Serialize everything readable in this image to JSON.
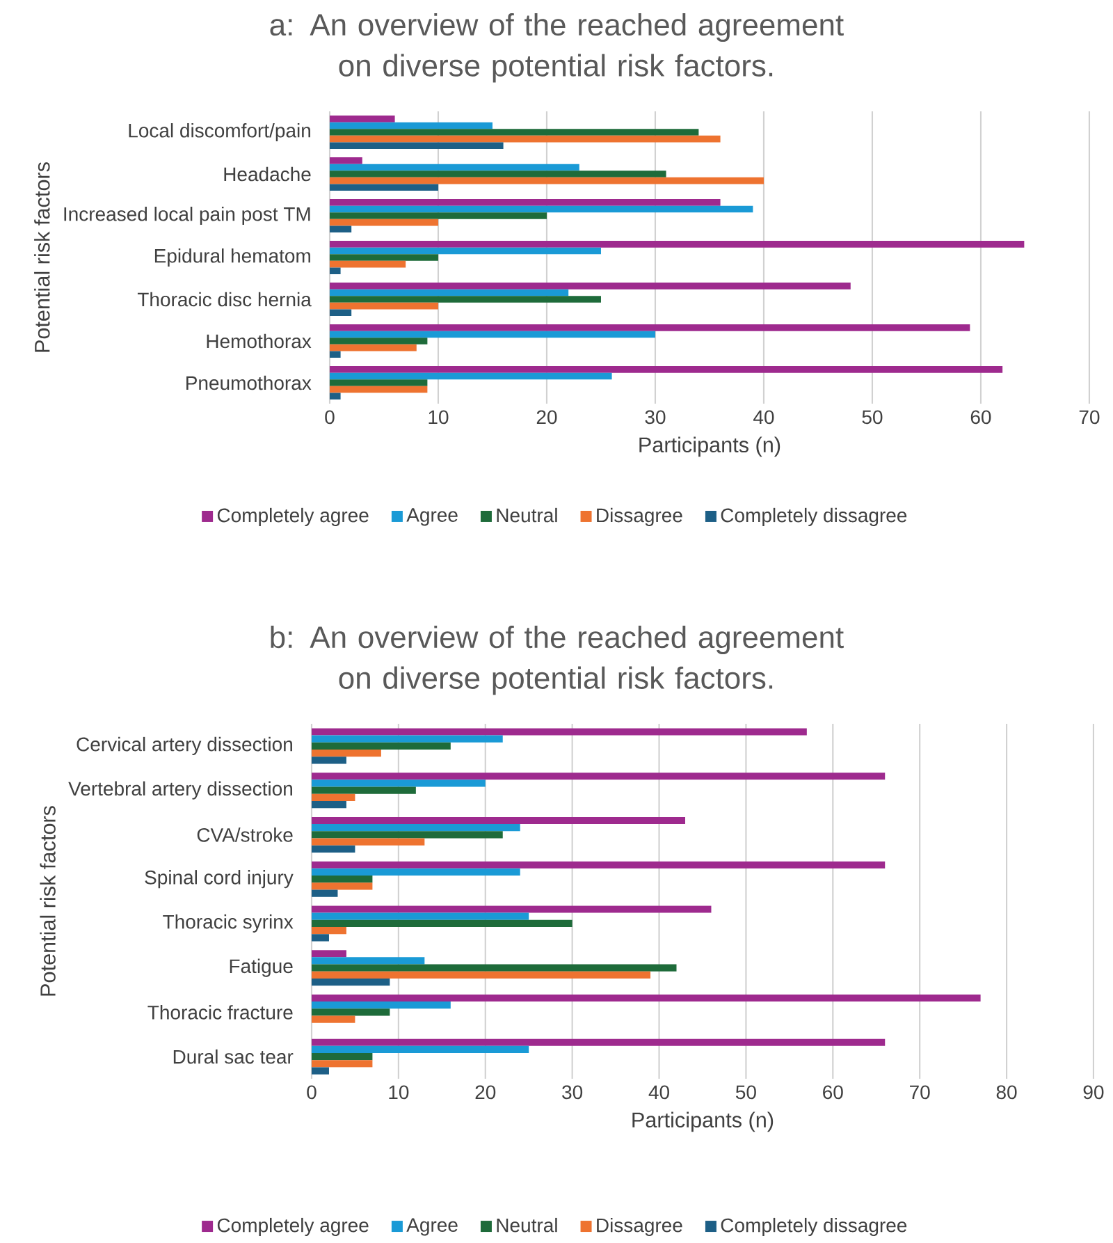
{
  "chart_data": [
    {
      "type": "bar",
      "orientation": "horizontal",
      "title": "a: An overview of the reached agreement on diverse potential risk factors.",
      "xlabel": "Participants (n)",
      "ylabel": "Potential risk factors",
      "categories": [
        "Local discomfort/pain",
        "Headache",
        "Increased local pain post TM",
        "Epidural hematom",
        "Thoracic disc hernia",
        "Hemothorax",
        "Pneumothorax"
      ],
      "series": [
        {
          "name": "Completely agree",
          "color": "#9e2a8e",
          "values": [
            6,
            3,
            36,
            64,
            48,
            59,
            62
          ]
        },
        {
          "name": "Agree",
          "color": "#1a9ad6",
          "values": [
            15,
            23,
            39,
            25,
            22,
            30,
            26
          ]
        },
        {
          "name": "Neutral",
          "color": "#1e6b3a",
          "values": [
            34,
            31,
            20,
            10,
            25,
            9,
            9
          ]
        },
        {
          "name": "Dissagree",
          "color": "#ee7330",
          "values": [
            36,
            40,
            10,
            7,
            10,
            8,
            9
          ]
        },
        {
          "name": "Completely dissagree",
          "color": "#1d5f86",
          "values": [
            16,
            10,
            2,
            1,
            2,
            1,
            1
          ]
        }
      ],
      "xlim": [
        0,
        70
      ],
      "xticks": [
        0,
        10,
        20,
        30,
        40,
        50,
        60,
        70
      ],
      "grid": "x",
      "legend": "bottom"
    },
    {
      "type": "bar",
      "orientation": "horizontal",
      "title": "b: An overview of the reached agreement on diverse potential risk factors.",
      "xlabel": "Participants (n)",
      "ylabel": "Potential risk factors",
      "categories": [
        "Cervical artery dissection",
        "Vertebral artery dissection",
        "CVA/stroke",
        "Spinal cord injury",
        "Thoracic syrinx",
        "Fatigue",
        "Thoracic fracture",
        "Dural sac tear"
      ],
      "series": [
        {
          "name": "Completely agree",
          "color": "#9e2a8e",
          "values": [
            57,
            66,
            43,
            66,
            46,
            4,
            77,
            66
          ]
        },
        {
          "name": "Agree",
          "color": "#1a9ad6",
          "values": [
            22,
            20,
            24,
            24,
            25,
            13,
            16,
            25
          ]
        },
        {
          "name": "Neutral",
          "color": "#1e6b3a",
          "values": [
            16,
            12,
            22,
            7,
            30,
            42,
            9,
            7
          ]
        },
        {
          "name": "Dissagree",
          "color": "#ee7330",
          "values": [
            8,
            5,
            13,
            7,
            4,
            39,
            5,
            7
          ]
        },
        {
          "name": "Completely dissagree",
          "color": "#1d5f86",
          "values": [
            4,
            4,
            5,
            3,
            2,
            9,
            0,
            2
          ]
        }
      ],
      "xlim": [
        0,
        90
      ],
      "xticks": [
        0,
        10,
        20,
        30,
        40,
        50,
        60,
        70,
        80,
        90
      ],
      "grid": "x",
      "legend": "bottom"
    }
  ]
}
